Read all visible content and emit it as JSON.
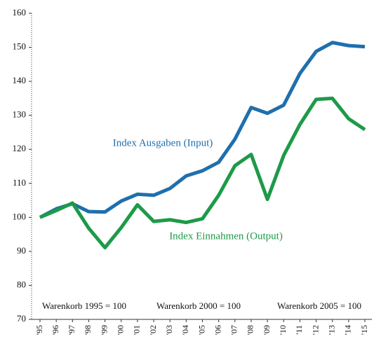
{
  "chart_data": {
    "type": "line",
    "categories": [
      "'95",
      "'96",
      "'97",
      "'98",
      "'99",
      "'00",
      "'01",
      "'02",
      "'03",
      "'04",
      "'05",
      "'06",
      "'07",
      "'08",
      "'09",
      "'10",
      "'11",
      "'12",
      "'13",
      "'14",
      "'15"
    ],
    "series": [
      {
        "name": "Index Ausgaben (Input)",
        "color": "#1f6fad",
        "values": [
          100,
          102.5,
          104,
          101.7,
          101.6,
          104.8,
          106.8,
          106.5,
          108.5,
          112.2,
          113.7,
          116.2,
          123,
          132.3,
          130.6,
          133,
          142.3,
          148.8,
          151.4,
          150.5,
          150.2
        ]
      },
      {
        "name": "Index Einnahmen (Output)",
        "color": "#1d9a48",
        "values": [
          100,
          102,
          104.2,
          96.8,
          91.1,
          97,
          103.7,
          98.8,
          99.3,
          98.5,
          99.6,
          106.5,
          115.2,
          118.5,
          105.3,
          118.2,
          127.3,
          134.7,
          135,
          129,
          125.8
        ]
      }
    ],
    "notes": [
      "Warenkorb 1995 = 100",
      "Warenkorb 2000 = 100",
      "Warenkorb 2005 = 100"
    ],
    "ylim": [
      70,
      160
    ],
    "yticks": [
      70,
      80,
      90,
      100,
      110,
      120,
      130,
      140,
      150,
      160
    ]
  }
}
